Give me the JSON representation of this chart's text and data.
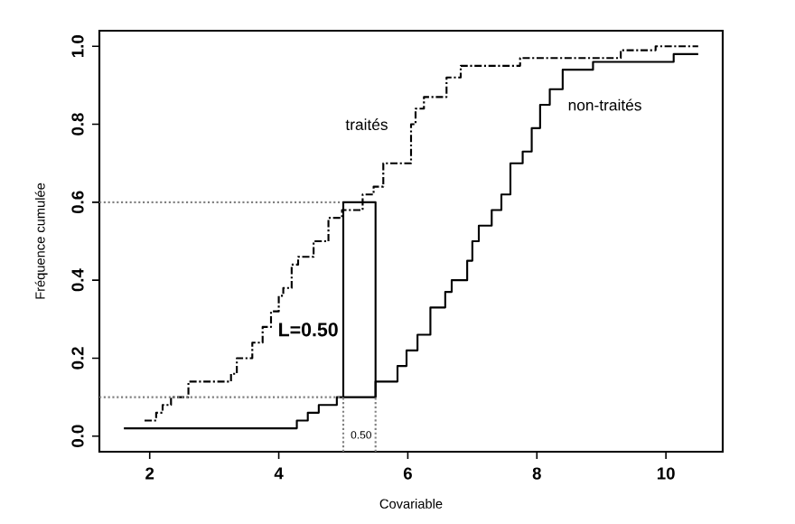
{
  "chart_data": {
    "type": "step",
    "xlabel": "Covariable",
    "ylabel": "Fréquence cumulée",
    "xlim": [
      1.22,
      10.88
    ],
    "ylim": [
      -0.04,
      1.04
    ],
    "xticks": [
      2,
      4,
      6,
      8,
      10
    ],
    "yticks": [
      {
        "value": 0,
        "label": "0.0"
      },
      {
        "value": 0.2,
        "label": "0.2"
      },
      {
        "value": 0.4,
        "label": "0.4"
      },
      {
        "value": 0.6,
        "label": "0.6"
      },
      {
        "value": 0.8,
        "label": "0.8"
      },
      {
        "value": 1,
        "label": "1.0"
      }
    ],
    "grid": false,
    "series": [
      {
        "name": "traités",
        "color": "#000000",
        "line_style": "dashed",
        "x": [
          1.92,
          2.1,
          2.2,
          2.33,
          2.6,
          3.26,
          3.35,
          3.59,
          3.75,
          3.88,
          4.0,
          4.07,
          4.2,
          4.3,
          4.54,
          4.77,
          4.98,
          5.3,
          5.47,
          5.62,
          6.05,
          6.12,
          6.25,
          6.6,
          6.82,
          7.74,
          9.3,
          9.84,
          10.5
        ],
        "values": [
          0.04,
          0.06,
          0.08,
          0.1,
          0.14,
          0.16,
          0.2,
          0.24,
          0.28,
          0.32,
          0.36,
          0.38,
          0.44,
          0.46,
          0.5,
          0.56,
          0.58,
          0.62,
          0.64,
          0.7,
          0.8,
          0.84,
          0.87,
          0.92,
          0.95,
          0.97,
          0.99,
          1.0,
          1.0
        ]
      },
      {
        "name": "non-traités",
        "color": "#000000",
        "line_style": "solid",
        "x": [
          1.6,
          4.28,
          4.45,
          4.62,
          4.9,
          5.5,
          5.84,
          5.98,
          6.15,
          6.35,
          6.58,
          6.68,
          6.92,
          7.0,
          7.1,
          7.3,
          7.45,
          7.59,
          7.78,
          7.92,
          8.05,
          8.2,
          8.4,
          8.87,
          10.12,
          10.5
        ],
        "values": [
          0.02,
          0.04,
          0.06,
          0.08,
          0.1,
          0.14,
          0.18,
          0.22,
          0.26,
          0.33,
          0.37,
          0.4,
          0.45,
          0.5,
          0.54,
          0.58,
          0.62,
          0.7,
          0.73,
          0.79,
          0.85,
          0.89,
          0.94,
          0.96,
          0.98,
          0.98
        ]
      },
      {
        "type": "line",
        "color": "#000000",
        "line_style": "solid",
        "x": [
          5.0,
          5.0,
          5.5,
          5.5
        ],
        "values": [
          0.1,
          0.6,
          0.6,
          0.1
        ]
      },
      {
        "type": "line",
        "color": "#808080",
        "line_style": "dotted",
        "x": [
          1.22,
          5.0
        ],
        "values": [
          0.6,
          0.6
        ]
      },
      {
        "type": "line",
        "color": "#808080",
        "line_style": "dotted",
        "x": [
          1.22,
          5.0
        ],
        "values": [
          0.1,
          0.1
        ]
      },
      {
        "type": "line",
        "color": "#808080",
        "line_style": "dotted",
        "x": [
          5.0,
          5.0
        ],
        "values": [
          -0.04,
          0.1
        ]
      },
      {
        "type": "line",
        "color": "#808080",
        "line_style": "dotted",
        "x": [
          5.5,
          5.5
        ],
        "values": [
          -0.04,
          0.1
        ]
      }
    ],
    "annotations": [
      "L=0.50",
      "0.50"
    ]
  }
}
